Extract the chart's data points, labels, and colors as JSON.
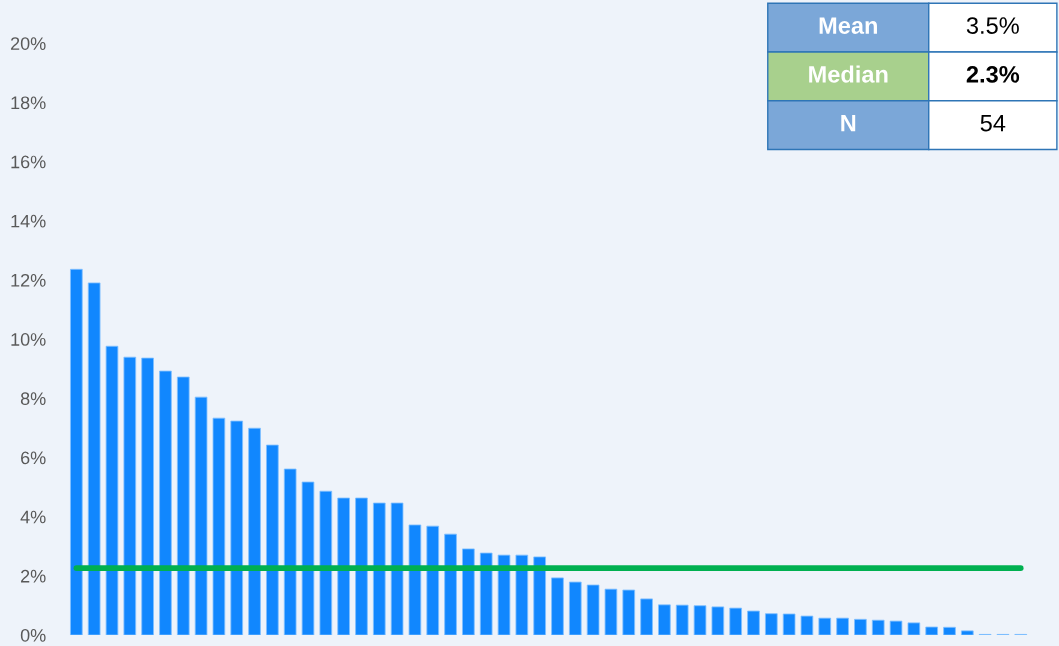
{
  "chart_data": {
    "type": "bar",
    "categories": [
      null,
      null,
      null,
      null,
      null,
      null,
      null,
      null,
      null,
      null,
      null,
      null,
      null,
      null,
      null,
      null,
      null,
      null,
      null,
      null,
      null,
      null,
      null,
      null,
      null,
      null,
      null,
      null,
      null,
      null,
      null,
      null,
      null,
      null,
      null,
      null,
      null,
      null,
      null,
      null,
      null,
      null,
      null,
      null,
      null,
      null,
      null,
      null,
      null,
      null,
      null,
      null,
      null,
      null
    ],
    "values": [
      12.36,
      11.9,
      9.76,
      9.39,
      9.36,
      8.92,
      8.72,
      8.04,
      7.33,
      7.23,
      6.99,
      6.42,
      5.61,
      5.17,
      4.86,
      4.63,
      4.63,
      4.46,
      4.46,
      3.72,
      3.68,
      3.41,
      2.91,
      2.77,
      2.7,
      2.7,
      2.64,
      1.93,
      1.79,
      1.69,
      1.55,
      1.52,
      1.22,
      1.02,
      1.01,
      0.99,
      0.95,
      0.91,
      0.81,
      0.72,
      0.71,
      0.64,
      0.57,
      0.57,
      0.53,
      0.5,
      0.47,
      0.41,
      0.27,
      0.26,
      0.14,
      0.02,
      0.02,
      0.02
    ],
    "color": "#1187fe",
    "ylim": [
      0,
      20
    ],
    "yticks": [
      {
        "value": 0,
        "label": "0%"
      },
      {
        "value": 2,
        "label": "2%"
      },
      {
        "value": 4,
        "label": "4%"
      },
      {
        "value": 6,
        "label": "6%"
      },
      {
        "value": 8,
        "label": "8%"
      },
      {
        "value": 10,
        "label": "10%"
      },
      {
        "value": 12,
        "label": "12%"
      },
      {
        "value": 14,
        "label": "14%"
      },
      {
        "value": 16,
        "label": "16%"
      },
      {
        "value": 18,
        "label": "18%"
      },
      {
        "value": 20,
        "label": "20%"
      }
    ],
    "ref_lines": [
      {
        "axis": "y",
        "value": 2.26,
        "color": "#00b050"
      }
    ],
    "annotations": [
      "Mean",
      "3.5%",
      "Median",
      "2.3%",
      "N",
      "54"
    ],
    "grid": false
  }
}
